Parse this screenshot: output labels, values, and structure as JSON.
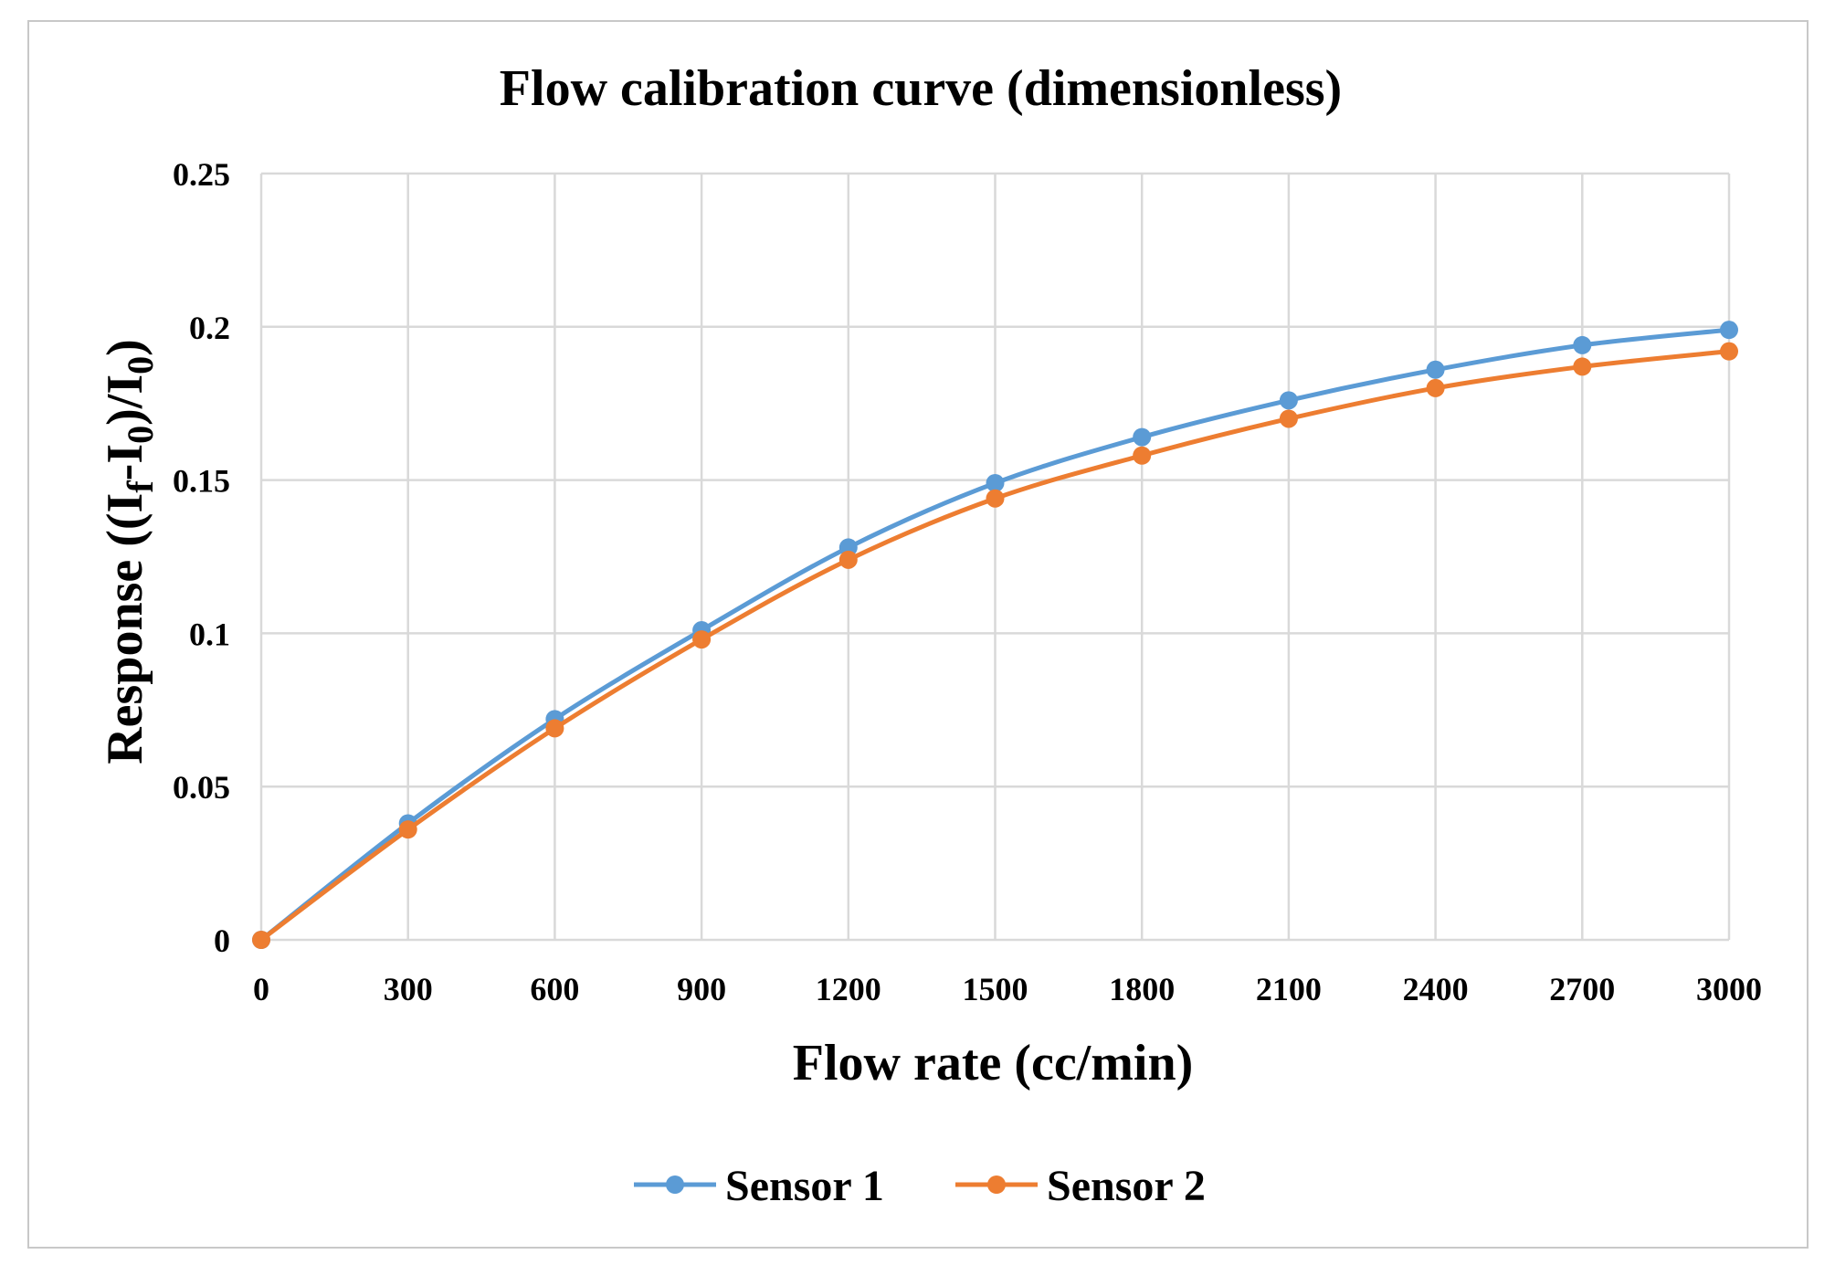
{
  "chart_data": {
    "type": "line",
    "title": "Flow calibration curve (dimensionless)",
    "xlabel": "Flow rate (cc/min)",
    "ylabel": {
      "prefix": "Response ((I",
      "sub1": "f",
      "mid": "-I",
      "sub2": "0",
      "mid2": ")/I",
      "sub3": "0",
      "suffix": ")"
    },
    "x": [
      0,
      300,
      600,
      900,
      1200,
      1500,
      1800,
      2100,
      2400,
      2700,
      3000
    ],
    "x_tick_labels": [
      "0",
      "300",
      "600",
      "900",
      "1200",
      "1500",
      "1800",
      "2100",
      "2400",
      "2700",
      "3000"
    ],
    "y_ticks": [
      0,
      0.05,
      0.1,
      0.15,
      0.2,
      0.25
    ],
    "y_tick_labels": [
      "0",
      "0.05",
      "0.1",
      "0.15",
      "0.2",
      "0.25"
    ],
    "xlim": [
      0,
      3000
    ],
    "ylim": [
      0,
      0.25
    ],
    "grid": true,
    "legend_position": "bottom",
    "series": [
      {
        "name": "Sensor 1",
        "color": "#5b9bd5",
        "values": [
          0,
          0.038,
          0.072,
          0.101,
          0.128,
          0.149,
          0.164,
          0.176,
          0.186,
          0.194,
          0.199
        ]
      },
      {
        "name": "Sensor 2",
        "color": "#ed7d31",
        "values": [
          0,
          0.036,
          0.069,
          0.098,
          0.124,
          0.144,
          0.158,
          0.17,
          0.18,
          0.187,
          0.192
        ]
      }
    ]
  }
}
